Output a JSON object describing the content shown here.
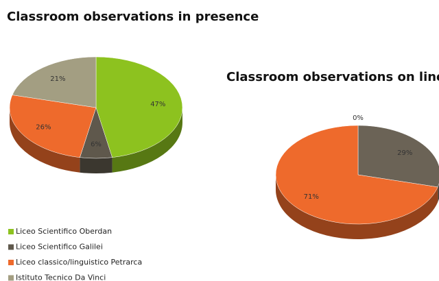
{
  "chart_data": [
    {
      "type": "pie3d",
      "title": "Classroom observations in presence",
      "categories": [
        "Liceo Scientifico Oberdan",
        "Liceo Scientifico Galilei",
        "Liceo classico/linguistico Petrarca",
        "Istituto Tecnico Da Vinci"
      ],
      "colors": [
        "#8dc21f",
        "#5f584c",
        "#ee6a2c",
        "#a39e82"
      ],
      "values": [
        47,
        6,
        26,
        21
      ],
      "value_labels": [
        "47%",
        "6%",
        "26%",
        "21%"
      ]
    },
    {
      "type": "pie3d",
      "title": "Classroom observations on line",
      "colors": [
        "#8dc21f",
        "#6b6356",
        "#ee6a2c"
      ],
      "values": [
        0,
        29,
        71
      ],
      "value_labels": [
        "0%",
        "29%",
        "71%"
      ]
    }
  ]
}
